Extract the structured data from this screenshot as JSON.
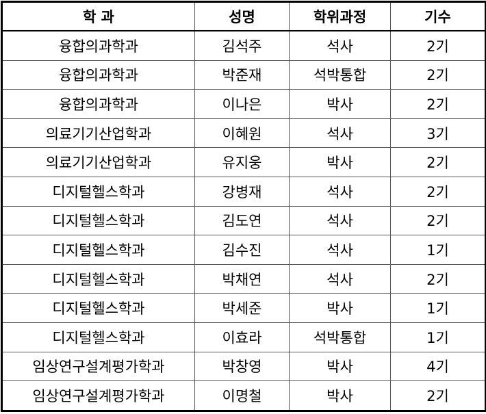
{
  "table": {
    "headers": [
      "학 과",
      "성명",
      "학위과정",
      "기수"
    ],
    "rows": [
      [
        "융합의과학과",
        "김석주",
        "석사",
        "2기"
      ],
      [
        "융합의과학과",
        "박준재",
        "석박통합",
        "2기"
      ],
      [
        "융합의과학과",
        "이나은",
        "박사",
        "2기"
      ],
      [
        "의료기기산업학과",
        "이혜원",
        "석사",
        "3기"
      ],
      [
        "의료기기산업학과",
        "유지웅",
        "박사",
        "2기"
      ],
      [
        "디지털헬스학과",
        "강병재",
        "석사",
        "2기"
      ],
      [
        "디지털헬스학과",
        "김도연",
        "석사",
        "2기"
      ],
      [
        "디지털헬스학과",
        "김수진",
        "석사",
        "1기"
      ],
      [
        "디지털헬스학과",
        "박채연",
        "석사",
        "2기"
      ],
      [
        "디지털헬스학과",
        "박세준",
        "박사",
        "1기"
      ],
      [
        "디지털헬스학과",
        "이효라",
        "석박통합",
        "1기"
      ],
      [
        "임상연구설계평가학과",
        "박창영",
        "박사",
        "4기"
      ],
      [
        "임상연구설계평가학과",
        "이명철",
        "박사",
        "2기"
      ]
    ]
  }
}
